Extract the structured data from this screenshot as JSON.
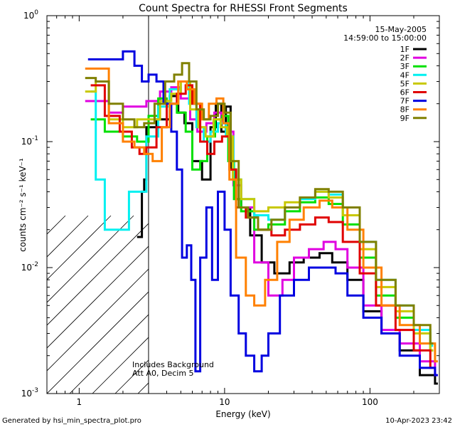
{
  "chart_data": {
    "type": "line",
    "title": "Count Spectra for RHESSI Front Segments",
    "xlabel": "Energy (keV)",
    "ylabel": "counts cm⁻² s⁻¹ keV⁻¹",
    "xscale": "log",
    "yscale": "log",
    "xlim": [
      0.6,
      300
    ],
    "ylim": [
      0.001,
      1
    ],
    "x_ticks": [
      {
        "value": 1,
        "label": "1"
      },
      {
        "value": 10,
        "label": "10"
      },
      {
        "value": 100,
        "label": "100"
      }
    ],
    "y_ticks": [
      {
        "value": 0.001,
        "base": "10",
        "exp": "-3"
      },
      {
        "value": 0.01,
        "base": "10",
        "exp": "-2"
      },
      {
        "value": 0.1,
        "base": "10",
        "exp": "-1"
      },
      {
        "value": 1,
        "base": "10",
        "exp": "0"
      }
    ],
    "shaded_region": {
      "from": 0.6,
      "to": 3,
      "pattern": "diagonal hatch"
    },
    "date": "15-May-2005",
    "time_range": "14:59:00 to 15:00:00",
    "annotations": [
      "Includes Background",
      "Att A0, Decim 5"
    ],
    "footer_left": "Generated by hsi_min_spectra_plot.pro",
    "footer_right": "10-Apr-2023 23:42",
    "series": [
      {
        "name": "1F",
        "color": "#000000",
        "points": [
          [
            2.5,
            0.0175
          ],
          [
            2.6,
            0.0175
          ],
          [
            2.7,
            0.04
          ],
          [
            2.8,
            0.05
          ],
          [
            2.9,
            0.13
          ],
          [
            3.4,
            0.15
          ],
          [
            4.2,
            0.23
          ],
          [
            4.8,
            0.17
          ],
          [
            5.3,
            0.14
          ],
          [
            6.0,
            0.07
          ],
          [
            7.0,
            0.05
          ],
          [
            8.0,
            0.13
          ],
          [
            8.7,
            0.2
          ],
          [
            9.5,
            0.12
          ],
          [
            10.2,
            0.19
          ],
          [
            11.0,
            0.06
          ],
          [
            12.0,
            0.035
          ],
          [
            13.0,
            0.03
          ],
          [
            15.0,
            0.018
          ],
          [
            18.0,
            0.011
          ],
          [
            22.0,
            0.009
          ],
          [
            28.0,
            0.011
          ],
          [
            35.0,
            0.012
          ],
          [
            45.0,
            0.013
          ],
          [
            55.0,
            0.011
          ],
          [
            70.0,
            0.008
          ],
          [
            90.0,
            0.0045
          ],
          [
            120.0,
            0.003
          ],
          [
            160.0,
            0.0022
          ],
          [
            220.0,
            0.0014
          ],
          [
            280.0,
            0.0012
          ]
        ]
      },
      {
        "name": "2F",
        "color": "#e000e0",
        "points": [
          [
            1.1,
            0.21
          ],
          [
            1.3,
            0.21
          ],
          [
            1.6,
            0.17
          ],
          [
            2.0,
            0.19
          ],
          [
            2.4,
            0.19
          ],
          [
            2.9,
            0.21
          ],
          [
            3.6,
            0.25
          ],
          [
            4.3,
            0.27
          ],
          [
            5.0,
            0.22
          ],
          [
            5.8,
            0.15
          ],
          [
            6.5,
            0.12
          ],
          [
            7.5,
            0.14
          ],
          [
            8.5,
            0.17
          ],
          [
            9.5,
            0.14
          ],
          [
            10.5,
            0.12
          ],
          [
            11.5,
            0.045
          ],
          [
            13.0,
            0.03
          ],
          [
            16.0,
            0.011
          ],
          [
            20.0,
            0.006
          ],
          [
            25.0,
            0.008
          ],
          [
            30.0,
            0.012
          ],
          [
            38.0,
            0.014
          ],
          [
            48.0,
            0.016
          ],
          [
            58.0,
            0.014
          ],
          [
            70.0,
            0.01
          ],
          [
            90.0,
            0.005
          ],
          [
            120.0,
            0.0032
          ],
          [
            160.0,
            0.0025
          ],
          [
            220.0,
            0.0018
          ],
          [
            280.0,
            0.0014
          ]
        ]
      },
      {
        "name": "3F",
        "color": "#00e000",
        "points": [
          [
            1.2,
            0.15
          ],
          [
            1.5,
            0.12
          ],
          [
            2.0,
            0.11
          ],
          [
            2.5,
            0.1
          ],
          [
            3.0,
            0.16
          ],
          [
            3.5,
            0.22
          ],
          [
            4.0,
            0.2
          ],
          [
            4.7,
            0.17
          ],
          [
            5.4,
            0.12
          ],
          [
            6.0,
            0.06
          ],
          [
            6.8,
            0.07
          ],
          [
            7.6,
            0.11
          ],
          [
            8.6,
            0.15
          ],
          [
            9.6,
            0.16
          ],
          [
            10.6,
            0.07
          ],
          [
            11.6,
            0.035
          ],
          [
            13.0,
            0.028
          ],
          [
            16.0,
            0.02
          ],
          [
            20.0,
            0.022
          ],
          [
            26.0,
            0.028
          ],
          [
            33.0,
            0.033
          ],
          [
            42.0,
            0.036
          ],
          [
            52.0,
            0.032
          ],
          [
            65.0,
            0.022
          ],
          [
            85.0,
            0.012
          ],
          [
            110.0,
            0.006
          ],
          [
            150.0,
            0.004
          ],
          [
            200.0,
            0.003
          ],
          [
            260.0,
            0.0022
          ]
        ]
      },
      {
        "name": "4F",
        "color": "#00f0f0",
        "points": [
          [
            1.2,
            0.25
          ],
          [
            1.3,
            0.05
          ],
          [
            1.5,
            0.02
          ],
          [
            1.9,
            0.02
          ],
          [
            2.2,
            0.04
          ],
          [
            2.5,
            0.04
          ],
          [
            2.9,
            0.11
          ],
          [
            3.5,
            0.19
          ],
          [
            4.2,
            0.26
          ],
          [
            5.0,
            0.3
          ],
          [
            5.7,
            0.2
          ],
          [
            6.4,
            0.13
          ],
          [
            7.2,
            0.1
          ],
          [
            8.0,
            0.12
          ],
          [
            9.0,
            0.14
          ],
          [
            10.2,
            0.11
          ],
          [
            11.5,
            0.05
          ],
          [
            13.0,
            0.035
          ],
          [
            16.0,
            0.026
          ],
          [
            20.0,
            0.024
          ],
          [
            26.0,
            0.03
          ],
          [
            33.0,
            0.035
          ],
          [
            42.0,
            0.04
          ],
          [
            52.0,
            0.038
          ],
          [
            65.0,
            0.03
          ],
          [
            85.0,
            0.016
          ],
          [
            110.0,
            0.008
          ],
          [
            150.0,
            0.005
          ],
          [
            200.0,
            0.0032
          ],
          [
            260.0,
            0.0024
          ]
        ]
      },
      {
        "name": "5F",
        "color": "#c8c800",
        "points": [
          [
            1.1,
            0.25
          ],
          [
            1.3,
            0.3
          ],
          [
            1.6,
            0.15
          ],
          [
            2.0,
            0.13
          ],
          [
            2.5,
            0.15
          ],
          [
            3.0,
            0.15
          ],
          [
            3.6,
            0.21
          ],
          [
            4.3,
            0.24
          ],
          [
            5.0,
            0.3
          ],
          [
            5.8,
            0.18
          ],
          [
            6.6,
            0.13
          ],
          [
            7.4,
            0.11
          ],
          [
            8.4,
            0.15
          ],
          [
            9.4,
            0.13
          ],
          [
            10.4,
            0.11
          ],
          [
            11.4,
            0.05
          ],
          [
            13.0,
            0.035
          ],
          [
            16.0,
            0.028
          ],
          [
            20.0,
            0.03
          ],
          [
            26.0,
            0.033
          ],
          [
            33.0,
            0.036
          ],
          [
            42.0,
            0.04
          ],
          [
            52.0,
            0.036
          ],
          [
            65.0,
            0.026
          ],
          [
            85.0,
            0.014
          ],
          [
            110.0,
            0.007
          ],
          [
            150.0,
            0.0045
          ],
          [
            200.0,
            0.003
          ],
          [
            260.0,
            0.0022
          ]
        ]
      },
      {
        "name": "6F",
        "color": "#e00000",
        "points": [
          [
            1.2,
            0.28
          ],
          [
            1.5,
            0.16
          ],
          [
            1.9,
            0.12
          ],
          [
            2.3,
            0.09
          ],
          [
            2.6,
            0.08
          ],
          [
            2.9,
            0.09
          ],
          [
            3.4,
            0.13
          ],
          [
            4.0,
            0.2
          ],
          [
            4.7,
            0.24
          ],
          [
            5.4,
            0.28
          ],
          [
            6.0,
            0.2
          ],
          [
            6.8,
            0.1
          ],
          [
            7.6,
            0.08
          ],
          [
            8.5,
            0.1
          ],
          [
            9.6,
            0.11
          ],
          [
            10.8,
            0.06
          ],
          [
            12.0,
            0.03
          ],
          [
            14.0,
            0.025
          ],
          [
            17.0,
            0.02
          ],
          [
            21.0,
            0.018
          ],
          [
            26.0,
            0.02
          ],
          [
            33.0,
            0.022
          ],
          [
            42.0,
            0.025
          ],
          [
            52.0,
            0.023
          ],
          [
            65.0,
            0.016
          ],
          [
            85.0,
            0.009
          ],
          [
            110.0,
            0.005
          ],
          [
            150.0,
            0.0032
          ],
          [
            200.0,
            0.0022
          ],
          [
            260.0,
            0.0016
          ]
        ]
      },
      {
        "name": "7F",
        "color": "#0000e0",
        "points": [
          [
            1.15,
            0.45
          ],
          [
            1.5,
            0.45
          ],
          [
            2.0,
            0.52
          ],
          [
            2.4,
            0.4
          ],
          [
            2.7,
            0.3
          ],
          [
            3.0,
            0.34
          ],
          [
            3.4,
            0.3
          ],
          [
            3.8,
            0.2
          ],
          [
            4.3,
            0.12
          ],
          [
            4.7,
            0.06
          ],
          [
            5.1,
            0.012
          ],
          [
            5.5,
            0.015
          ],
          [
            5.9,
            0.008
          ],
          [
            6.3,
            0.0015
          ],
          [
            6.8,
            0.012
          ],
          [
            7.5,
            0.03
          ],
          [
            8.2,
            0.008
          ],
          [
            9.0,
            0.04
          ],
          [
            10.0,
            0.02
          ],
          [
            11.0,
            0.006
          ],
          [
            12.5,
            0.003
          ],
          [
            14.0,
            0.002
          ],
          [
            16.0,
            0.0015
          ],
          [
            18.0,
            0.002
          ],
          [
            20.0,
            0.003
          ],
          [
            24.0,
            0.006
          ],
          [
            30.0,
            0.008
          ],
          [
            38.0,
            0.01
          ],
          [
            48.0,
            0.01
          ],
          [
            58.0,
            0.009
          ],
          [
            70.0,
            0.006
          ],
          [
            90.0,
            0.004
          ],
          [
            120.0,
            0.003
          ],
          [
            160.0,
            0.002
          ],
          [
            220.0,
            0.0016
          ],
          [
            280.0,
            0.0014
          ]
        ]
      },
      {
        "name": "8F",
        "color": "#ff8000",
        "points": [
          [
            1.1,
            0.38
          ],
          [
            1.3,
            0.38
          ],
          [
            1.6,
            0.14
          ],
          [
            2.0,
            0.1
          ],
          [
            2.4,
            0.09
          ],
          [
            2.8,
            0.08
          ],
          [
            3.2,
            0.07
          ],
          [
            3.7,
            0.13
          ],
          [
            4.2,
            0.2
          ],
          [
            4.8,
            0.3
          ],
          [
            5.5,
            0.26
          ],
          [
            6.2,
            0.2
          ],
          [
            7.0,
            0.15
          ],
          [
            7.8,
            0.2
          ],
          [
            8.8,
            0.22
          ],
          [
            9.8,
            0.14
          ],
          [
            10.8,
            0.05
          ],
          [
            12.0,
            0.012
          ],
          [
            14.0,
            0.006
          ],
          [
            16.0,
            0.005
          ],
          [
            19.0,
            0.008
          ],
          [
            23.0,
            0.016
          ],
          [
            28.0,
            0.024
          ],
          [
            35.0,
            0.03
          ],
          [
            45.0,
            0.034
          ],
          [
            55.0,
            0.03
          ],
          [
            70.0,
            0.02
          ],
          [
            90.0,
            0.01
          ],
          [
            120.0,
            0.005
          ],
          [
            160.0,
            0.0035
          ],
          [
            220.0,
            0.0025
          ],
          [
            280.0,
            0.0018
          ]
        ]
      },
      {
        "name": "9F",
        "color": "#808000",
        "points": [
          [
            1.1,
            0.32
          ],
          [
            1.3,
            0.3
          ],
          [
            1.6,
            0.2
          ],
          [
            2.0,
            0.15
          ],
          [
            2.4,
            0.13
          ],
          [
            2.8,
            0.14
          ],
          [
            3.3,
            0.2
          ],
          [
            3.9,
            0.3
          ],
          [
            4.5,
            0.34
          ],
          [
            5.1,
            0.42
          ],
          [
            5.7,
            0.3
          ],
          [
            6.4,
            0.18
          ],
          [
            7.2,
            0.15
          ],
          [
            8.0,
            0.16
          ],
          [
            9.0,
            0.2
          ],
          [
            10.0,
            0.17
          ],
          [
            11.0,
            0.07
          ],
          [
            12.5,
            0.03
          ],
          [
            14.5,
            0.025
          ],
          [
            17.0,
            0.02
          ],
          [
            21.0,
            0.024
          ],
          [
            26.0,
            0.03
          ],
          [
            33.0,
            0.036
          ],
          [
            42.0,
            0.042
          ],
          [
            52.0,
            0.04
          ],
          [
            65.0,
            0.03
          ],
          [
            85.0,
            0.016
          ],
          [
            110.0,
            0.008
          ],
          [
            150.0,
            0.005
          ],
          [
            200.0,
            0.0035
          ],
          [
            260.0,
            0.0025
          ]
        ]
      }
    ]
  }
}
